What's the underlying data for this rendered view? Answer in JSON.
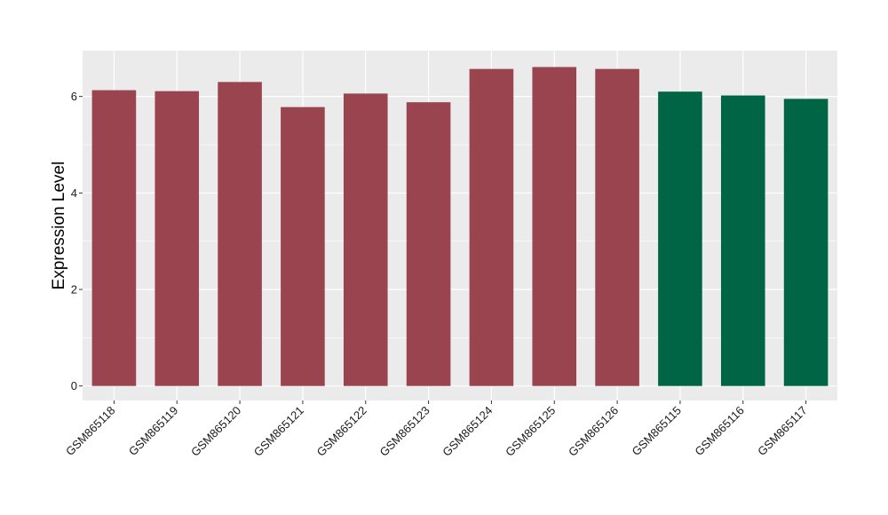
{
  "chart_data": {
    "type": "bar",
    "title": "",
    "xlabel": "",
    "ylabel": "Expression Level",
    "ylim": [
      -0.3,
      6.95
    ],
    "yticks": [
      0,
      2,
      4,
      6
    ],
    "grid": true,
    "categories": [
      "GSM865118",
      "GSM865119",
      "GSM865120",
      "GSM865121",
      "GSM865122",
      "GSM865123",
      "GSM865124",
      "GSM865125",
      "GSM865126",
      "GSM865115",
      "GSM865116",
      "GSM865117"
    ],
    "values": [
      6.13,
      6.11,
      6.3,
      5.78,
      6.06,
      5.88,
      6.57,
      6.61,
      6.57,
      6.1,
      6.02,
      5.95
    ],
    "bar_colors": [
      "#99444f",
      "#99444f",
      "#99444f",
      "#99444f",
      "#99444f",
      "#99444f",
      "#99444f",
      "#99444f",
      "#99444f",
      "#006545",
      "#006545",
      "#006545"
    ],
    "panel_background": "#ebebeb",
    "gridline_color": "#ffffff"
  }
}
